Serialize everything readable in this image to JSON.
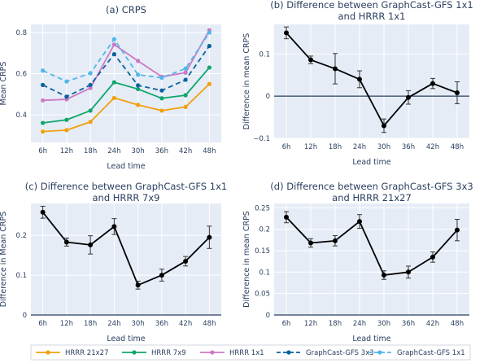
{
  "chart_data": [
    {
      "type": "line",
      "title": "(a) CRPS",
      "xlabel": "Lead time",
      "ylabel": "Mean CRPS",
      "categories": [
        "6h",
        "12h",
        "18h",
        "24h",
        "30h",
        "36h",
        "42h",
        "48h"
      ],
      "ylim": [
        0.265,
        0.84
      ],
      "yticks": [
        0.4,
        0.6,
        0.8
      ],
      "grid": true,
      "series": [
        {
          "name": "HRRR 21x27",
          "color": "#f0a10e",
          "dash": "solid",
          "values": [
            0.318,
            0.325,
            0.365,
            0.482,
            0.448,
            0.42,
            0.438,
            0.55
          ]
        },
        {
          "name": "HRRR 7x9",
          "color": "#0ea66a",
          "dash": "solid",
          "values": [
            0.36,
            0.375,
            0.42,
            0.558,
            0.525,
            0.48,
            0.495,
            0.63
          ]
        },
        {
          "name": "HRRR 1x1",
          "color": "#cd79c4",
          "dash": "solid",
          "values": [
            0.47,
            0.475,
            0.53,
            0.742,
            0.662,
            0.585,
            0.605,
            0.812
          ]
        },
        {
          "name": "GraphCast-GFS 3x3",
          "color": "#0b629e",
          "dash": "dash",
          "values": [
            0.545,
            0.488,
            0.545,
            0.695,
            0.543,
            0.518,
            0.57,
            0.735
          ]
        },
        {
          "name": "GraphCast-GFS 1x1",
          "color": "#51b7ea",
          "dash": "dash",
          "values": [
            0.615,
            0.562,
            0.602,
            0.768,
            0.595,
            0.58,
            0.625,
            0.8
          ]
        }
      ]
    },
    {
      "type": "line",
      "title": "(b) Difference between GraphCast-GFS 1x1",
      "title2": "and HRRR 1x1",
      "xlabel": "Lead time",
      "ylabel": "Difference in mean CRPS",
      "categories": [
        "6h",
        "12h",
        "18h",
        "24h",
        "30h",
        "36h",
        "42h",
        "48h"
      ],
      "ylim": [
        -0.1,
        0.17
      ],
      "yticks": [
        -0.1,
        0,
        0.1
      ],
      "zeroline": true,
      "series": [
        {
          "name": "difference",
          "color": "#000000",
          "dash": "solid",
          "values": [
            0.15,
            0.086,
            0.065,
            0.04,
            -0.07,
            -0.003,
            0.03,
            0.008
          ],
          "errors": [
            0.014,
            0.009,
            0.036,
            0.02,
            0.016,
            0.016,
            0.012,
            0.026
          ]
        }
      ]
    },
    {
      "type": "line",
      "title": "(c) Difference between GraphCast-GFS 1x1",
      "title2": "and HRRR 7x9",
      "xlabel": "Lead time",
      "ylabel": "Difference in Mean CRPS",
      "categories": [
        "6h",
        "12h",
        "18h",
        "24h",
        "30h",
        "36h",
        "42h",
        "48h"
      ],
      "ylim": [
        0,
        0.28
      ],
      "yticks": [
        0,
        0.1,
        0.2
      ],
      "zeroline": true,
      "series": [
        {
          "name": "difference",
          "color": "#000000",
          "dash": "solid",
          "values": [
            0.258,
            0.183,
            0.176,
            0.222,
            0.075,
            0.1,
            0.135,
            0.195
          ],
          "errors": [
            0.015,
            0.01,
            0.023,
            0.02,
            0.01,
            0.015,
            0.012,
            0.028
          ]
        }
      ]
    },
    {
      "type": "line",
      "title": "(d) Difference between GraphCast-GFS 3x3",
      "title2": "and HRRR 21x27",
      "xlabel": "Lead time",
      "ylabel": "Difference in mean CRPS",
      "categories": [
        "6h",
        "12h",
        "18h",
        "24h",
        "30h",
        "36h",
        "42h",
        "48h"
      ],
      "ylim": [
        0,
        0.26
      ],
      "yticks": [
        0,
        0.05,
        0.1,
        0.15,
        0.2,
        0.25
      ],
      "zeroline": true,
      "series": [
        {
          "name": "difference",
          "color": "#000000",
          "dash": "solid",
          "values": [
            0.228,
            0.168,
            0.173,
            0.218,
            0.093,
            0.1,
            0.135,
            0.198
          ],
          "errors": [
            0.013,
            0.01,
            0.012,
            0.016,
            0.01,
            0.014,
            0.012,
            0.025
          ]
        }
      ]
    }
  ],
  "legend": [
    {
      "label": "HRRR 21x27",
      "color": "#f0a10e",
      "dash": "solid"
    },
    {
      "label": "HRRR 7x9",
      "color": "#0ea66a",
      "dash": "solid"
    },
    {
      "label": "HRRR 1x1",
      "color": "#cd79c4",
      "dash": "solid"
    },
    {
      "label": "GraphCast-GFS 3x3",
      "color": "#0b629e",
      "dash": "dash"
    },
    {
      "label": "GraphCast-GFS 1x1",
      "color": "#51b7ea",
      "dash": "dash"
    }
  ],
  "colors": {
    "plot_bg": "#e5ecf6",
    "grid": "#ffffff",
    "zeroline": "#2a3f5f",
    "text": "#2a3f5f"
  }
}
